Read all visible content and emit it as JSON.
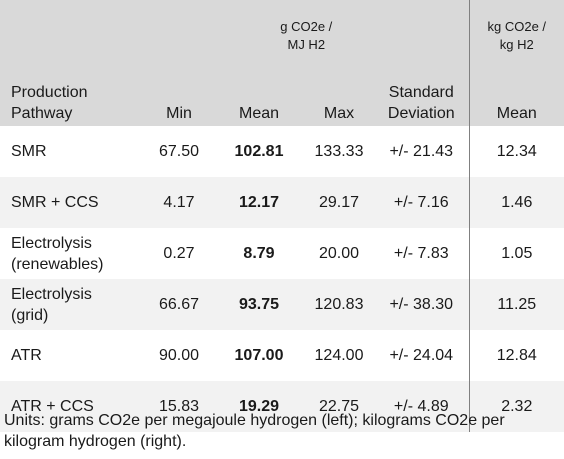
{
  "header": {
    "units_left": "g CO2e /\nMJ H2",
    "units_right": "kg CO2e /\nkg H2",
    "col_pathway": "Production\nPathway",
    "col_min": "Min",
    "col_mean": "Mean",
    "col_max": "Max",
    "col_std": "Standard\nDeviation",
    "col_mean_kg": "Mean"
  },
  "rows": [
    {
      "pathway": "SMR",
      "min": "67.50",
      "mean": "102.81",
      "max": "133.33",
      "std": "+/- 21.43",
      "mean_kg": "12.34"
    },
    {
      "pathway": "SMR + CCS",
      "min": "4.17",
      "mean": "12.17",
      "max": "29.17",
      "std": "+/- 7.16",
      "mean_kg": "1.46"
    },
    {
      "pathway": "Electrolysis\n(renewables)",
      "min": "0.27",
      "mean": "8.79",
      "max": "20.00",
      "std": "+/- 7.83",
      "mean_kg": "1.05"
    },
    {
      "pathway": "Electrolysis\n(grid)",
      "min": "66.67",
      "mean": "93.75",
      "max": "120.83",
      "std": "+/- 38.30",
      "mean_kg": "11.25"
    },
    {
      "pathway": "ATR",
      "min": "90.00",
      "mean": "107.00",
      "max": "124.00",
      "std": "+/- 24.04",
      "mean_kg": "12.84"
    },
    {
      "pathway": "ATR + CCS",
      "min": "15.83",
      "mean": "19.29",
      "max": "22.75",
      "std": "+/- 4.89",
      "mean_kg": "2.32"
    }
  ],
  "footnote": "Units: grams CO2e per megajoule hydrogen (left); kilograms CO2e per kilogram hydrogen (right)."
}
